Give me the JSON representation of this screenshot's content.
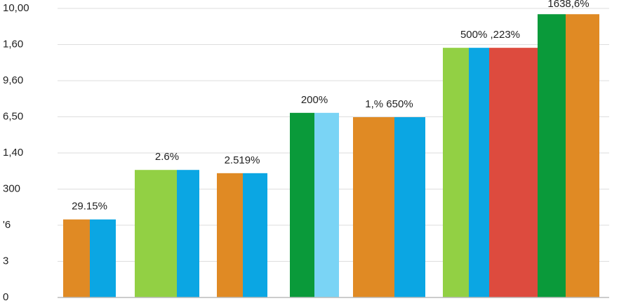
{
  "chart_data": {
    "type": "bar",
    "ylim": [
      0,
      8
    ],
    "yticks": [
      {
        "value": 0,
        "label": "0"
      },
      {
        "value": 1,
        "label": "3"
      },
      {
        "value": 2,
        "label": "'6"
      },
      {
        "value": 3,
        "label": "300"
      },
      {
        "value": 4,
        "label": "1,40"
      },
      {
        "value": 5,
        "label": "6,50"
      },
      {
        "value": 6,
        "label": "9,60"
      },
      {
        "value": 7,
        "label": "1,60"
      },
      {
        "value": 8,
        "label": "10,00"
      }
    ],
    "grid": true,
    "groups": [
      {
        "annotation": "29.15%",
        "bars": [
          {
            "color": "#e08a24",
            "value": 2.16
          },
          {
            "color": "#0ba6e3",
            "value": 2.16
          }
        ]
      },
      {
        "annotation": "2.6%",
        "bars": [
          {
            "color": "#92d044",
            "value": 3.53
          },
          {
            "color": "#0ba6e3",
            "value": 3.53
          }
        ]
      },
      {
        "annotation": "2.519%",
        "bars": [
          {
            "color": "#e08a24",
            "value": 3.44
          },
          {
            "color": "#0ba6e3",
            "value": 3.44
          }
        ]
      },
      {
        "annotation": "200%",
        "bars": [
          {
            "color": "#0a9a3a",
            "value": 5.11
          },
          {
            "color": "#7ad4f5",
            "value": 5.11
          }
        ]
      },
      {
        "annotation": "1,% 650%",
        "bars": [
          {
            "color": "#e08a24",
            "value": 4.99
          },
          {
            "color": "#0ba6e3",
            "value": 4.99
          }
        ]
      },
      {
        "annotation": "500% ,223%",
        "bars": [
          {
            "color": "#92d044",
            "value": 6.91
          },
          {
            "color": "#0ba6e3",
            "value": 6.91
          },
          {
            "color": "#dd4b3e",
            "value": 6.91
          }
        ]
      },
      {
        "annotation": "1638,6%",
        "bars": [
          {
            "color": "#0a9a3a",
            "value": 7.84
          },
          {
            "color": "#e08a24",
            "value": 7.84
          }
        ]
      }
    ]
  }
}
